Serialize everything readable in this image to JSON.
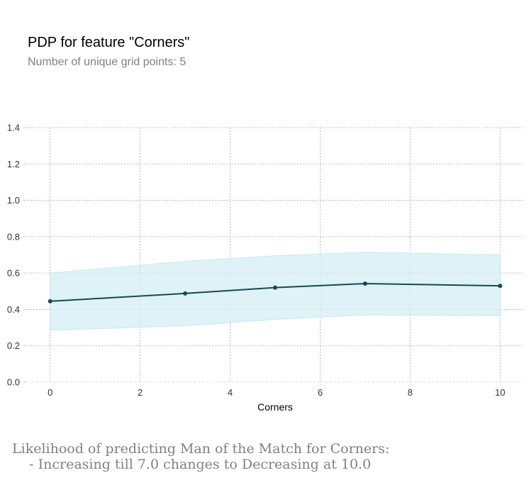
{
  "title": "PDP for feature \"Corners\"",
  "subtitle": "Number of unique grid points: 5",
  "caption_line1": "Likelihood of predicting Man of the Match for Corners:",
  "caption_line2": "    - Increasing till 7.0 changes to Decreasing at 10.0",
  "colors": {
    "line": "#1a4756",
    "band": "#d4eef5",
    "band_edge": "#b9e2ec",
    "grid": "#aaaaaa"
  },
  "chart_data": {
    "type": "line",
    "xlabel": "Corners",
    "ylabel": "",
    "xlim": [
      -0.5,
      10.5
    ],
    "ylim": [
      0,
      1.4
    ],
    "xticks": [
      0,
      2,
      4,
      6,
      8,
      10
    ],
    "yticks": [
      0.0,
      0.2,
      0.4,
      0.6,
      0.8,
      1.0,
      1.2,
      1.4
    ],
    "grid": true,
    "series": [
      {
        "x": [
          0,
          3,
          5,
          7,
          10
        ],
        "values": [
          0.445,
          0.488,
          0.52,
          0.542,
          0.53
        ],
        "lower": [
          0.285,
          0.31,
          0.345,
          0.37,
          0.365
        ],
        "upper": [
          0.6,
          0.665,
          0.695,
          0.715,
          0.7
        ]
      }
    ]
  }
}
